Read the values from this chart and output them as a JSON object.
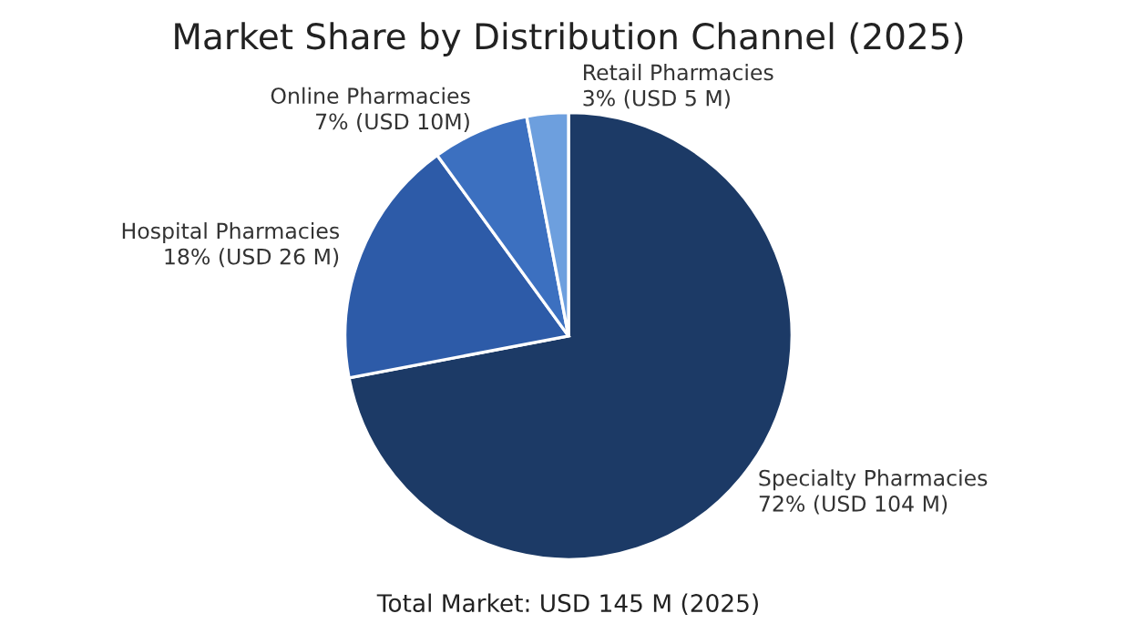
{
  "chart_data": {
    "type": "pie",
    "title": "Market Share by Distribution Channel (2025)",
    "categories": [
      "Specialty Pharmacies",
      "Hospital Pharmacies",
      "Online Pharmacies",
      "Retail Pharmacies"
    ],
    "values": [
      72,
      18,
      7,
      3
    ],
    "value_labels": [
      "72% (USD 104 M)",
      "18% (USD 26 M)",
      "7% (USD 10M)",
      "3% (USD 5 M)"
    ],
    "colors": [
      "#1c3a66",
      "#2d5ba8",
      "#3c70c0",
      "#6d9fde"
    ],
    "annotations": [
      "Total Market: USD 145 M (2025)"
    ],
    "legend": false
  }
}
